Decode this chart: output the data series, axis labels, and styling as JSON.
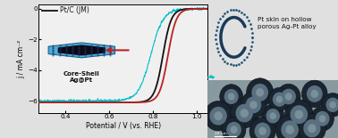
{
  "xlabel": "Potential / V (vs. RHE)",
  "ylabel": "j / mA cm⁻²",
  "xlim": [
    0.28,
    1.05
  ],
  "ylim": [
    -6.8,
    0.3
  ],
  "yticks": [
    0,
    -2,
    -4,
    -6
  ],
  "xticks": [
    0.4,
    0.6,
    0.8,
    1.0
  ],
  "plot_bg": "#f0f0f0",
  "fig_bg": "#e0e0e0",
  "line_black_label": "Pt/C (JM)",
  "annotation_text1": "Core-Shell\nAg@Pt",
  "annotation_text2": "Pt skin on hollow\nporous Ag-Pt alloy",
  "colors": {
    "black": "#111111",
    "red": "#bb2222",
    "cyan": "#00c0c8"
  },
  "right_top_bg": "#c8e8f8",
  "right_bot_bg": "#a8b8b8",
  "hex_outer": "#4aacdc",
  "hex_inner": "#0a0a18",
  "tem_bg": "#8899a0",
  "tem_particle_dark": "#222222",
  "tem_particle_mid": "#556677",
  "tem_particle_light": "#8899aa"
}
